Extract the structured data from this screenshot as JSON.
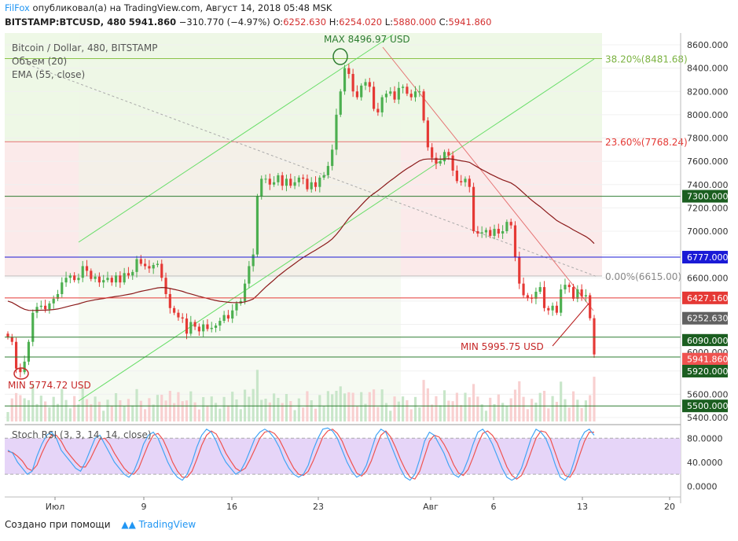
{
  "header": {
    "author": "FilFox",
    "published_text": "опубликовал(а) на TradingView.com, Август 14, 2018 05:48 MSK",
    "symbol": "BITSTAMP:BTCUSD, 480",
    "last": "5941.860",
    "change": "−310.770 (−4.97%)",
    "o_label": "O:",
    "o_val": "6252.630",
    "h_label": "H:",
    "h_val": "6254.020",
    "l_label": "L:",
    "l_val": "5880.000",
    "c_label": "C:",
    "c_val": "5941.860"
  },
  "legend": {
    "title": "Bitcoin / Dollar, 480, BITSTAMP",
    "volume": "Объем (20)",
    "ema": "EMA (55, close)"
  },
  "footer": {
    "created_with": "Создано при помощи",
    "brand": "TradingView"
  },
  "colors": {
    "up": "#4caf50",
    "down": "#e53935",
    "ema": "#8b1a1a",
    "fib_green": "#8bc34a",
    "hline_green": "#2e7d32",
    "hline_blue": "#1a1ad6",
    "hline_red": "#e53935",
    "stoch_k": "#42a5f5",
    "stoch_d": "#ef5350",
    "stoch_band": "#e1bee7"
  },
  "chart_data": [
    {
      "type": "candlestick",
      "title": "Bitcoin / Dollar, 480, BITSTAMP",
      "ylim": [
        5400,
        8650
      ],
      "y_ticks": [
        "8600.000",
        "8400.000",
        "8200.000",
        "8000.000",
        "7800.000",
        "7600.000",
        "7400.000",
        "7200.000",
        "7000.000",
        "6800.000",
        "6600.000",
        "5600.000",
        "5400.000"
      ],
      "x_ticks": [
        "Июл",
        "9",
        "16",
        "23",
        "Авг",
        "6",
        "13",
        "20"
      ],
      "price_labels": [
        {
          "value": 7300,
          "text": "7300.000",
          "kind": "green"
        },
        {
          "value": 6777,
          "text": "6777.000",
          "kind": "blue"
        },
        {
          "value": 6427.16,
          "text": "6427.160",
          "kind": "red"
        },
        {
          "value": 6252.63,
          "text": "6252.630",
          "kind": "gray"
        },
        {
          "value": 6090,
          "text": "6090.000",
          "kind": "green"
        },
        {
          "value": 6000,
          "text": "6000.000",
          "kind": "plain"
        },
        {
          "value": 5941.86,
          "text": "5941.860",
          "kind": "last"
        },
        {
          "value": 5920,
          "text": "5920.000",
          "kind": "green"
        },
        {
          "value": 5500,
          "text": "5500.000",
          "kind": "green"
        }
      ],
      "fib_labels": [
        {
          "value": 8481.68,
          "text": "38.20%(8481.68)"
        },
        {
          "value": 7768.24,
          "text": "23.60%(7768.24)"
        },
        {
          "value": 6615.0,
          "text": "0.00%(6615.00)"
        }
      ],
      "annotations": [
        {
          "text": "MAX 8496.97 USD",
          "value": 8496.97
        },
        {
          "text": "MIN 5774.72 USD",
          "value": 5774.72
        },
        {
          "text": "MIN 5995.75 USD",
          "value": 5995.75
        }
      ],
      "closes": [
        6090,
        6050,
        5820,
        5790,
        5880,
        6050,
        6300,
        6350,
        6360,
        6330,
        6380,
        6420,
        6460,
        6560,
        6600,
        6620,
        6580,
        6600,
        6700,
        6660,
        6590,
        6610,
        6560,
        6580,
        6600,
        6560,
        6620,
        6560,
        6640,
        6620,
        6650,
        6760,
        6720,
        6700,
        6680,
        6710,
        6720,
        6600,
        6460,
        6340,
        6300,
        6260,
        6250,
        6120,
        6220,
        6180,
        6140,
        6200,
        6160,
        6170,
        6190,
        6230,
        6280,
        6250,
        6320,
        6380,
        6400,
        6550,
        6700,
        6800,
        7300,
        7450,
        7450,
        7400,
        7420,
        7480,
        7390,
        7450,
        7390,
        7420,
        7460,
        7450,
        7360,
        7420,
        7380,
        7460,
        7480,
        7560,
        7700,
        8000,
        8200,
        8400,
        8350,
        8200,
        8150,
        8250,
        8280,
        8240,
        8050,
        8020,
        8150,
        8180,
        8200,
        8130,
        8230,
        8240,
        8180,
        8150,
        8200,
        8200,
        7950,
        7720,
        7630,
        7580,
        7600,
        7680,
        7650,
        7520,
        7430,
        7420,
        7450,
        7380,
        7000,
        6980,
        6990,
        7010,
        6960,
        7020,
        6980,
        7000,
        7080,
        7050,
        6780,
        6550,
        6450,
        6430,
        6420,
        6480,
        6520,
        6340,
        6320,
        6360,
        6300,
        6500,
        6540,
        6520,
        6420,
        6500,
        6440,
        6450,
        6252.63,
        5941.86
      ]
    },
    {
      "type": "line",
      "title": "Stoch RSI (3, 3, 14, 14, close)",
      "ylim": [
        -10,
        100
      ],
      "y_ticks": [
        "80.0000",
        "40.0000",
        "0.0000"
      ],
      "band": [
        20,
        80
      ],
      "k": [
        60,
        55,
        40,
        30,
        20,
        25,
        50,
        70,
        85,
        90,
        80,
        60,
        50,
        40,
        30,
        25,
        40,
        60,
        80,
        85,
        70,
        55,
        40,
        30,
        20,
        15,
        25,
        45,
        70,
        85,
        90,
        80,
        60,
        40,
        25,
        15,
        10,
        20,
        40,
        65,
        85,
        95,
        90,
        75,
        55,
        40,
        30,
        20,
        25,
        40,
        60,
        80,
        90,
        95,
        90,
        80,
        65,
        45,
        30,
        20,
        15,
        20,
        35,
        60,
        80,
        95,
        97,
        92,
        80,
        60,
        40,
        25,
        15,
        20,
        35,
        60,
        85,
        95,
        90,
        70,
        50,
        30,
        15,
        10,
        20,
        45,
        75,
        90,
        85,
        70,
        55,
        35,
        20,
        15,
        25,
        45,
        70,
        90,
        95,
        85,
        70,
        50,
        30,
        15,
        10,
        15,
        30,
        55,
        80,
        95,
        90,
        80,
        60,
        35,
        15,
        10,
        20,
        45,
        75,
        90,
        95,
        85
      ],
      "d": [
        58,
        56,
        50,
        42,
        30,
        26,
        35,
        55,
        72,
        85,
        85,
        75,
        60,
        50,
        40,
        32,
        32,
        45,
        62,
        78,
        80,
        70,
        55,
        42,
        30,
        22,
        20,
        30,
        50,
        70,
        85,
        88,
        78,
        60,
        40,
        25,
        15,
        15,
        25,
        45,
        68,
        85,
        92,
        87,
        72,
        55,
        42,
        30,
        25,
        30,
        45,
        62,
        80,
        90,
        92,
        88,
        78,
        62,
        45,
        30,
        20,
        18,
        25,
        42,
        62,
        82,
        92,
        95,
        88,
        75,
        55,
        38,
        22,
        17,
        25,
        42,
        65,
        85,
        92,
        82,
        65,
        45,
        28,
        15,
        12,
        25,
        50,
        75,
        85,
        82,
        70,
        55,
        36,
        22,
        18,
        28,
        48,
        70,
        88,
        92,
        85,
        72,
        52,
        32,
        18,
        12,
        18,
        35,
        58,
        80,
        92,
        90,
        78,
        55,
        32,
        18,
        15,
        28,
        52,
        75,
        90,
        90
      ]
    }
  ]
}
